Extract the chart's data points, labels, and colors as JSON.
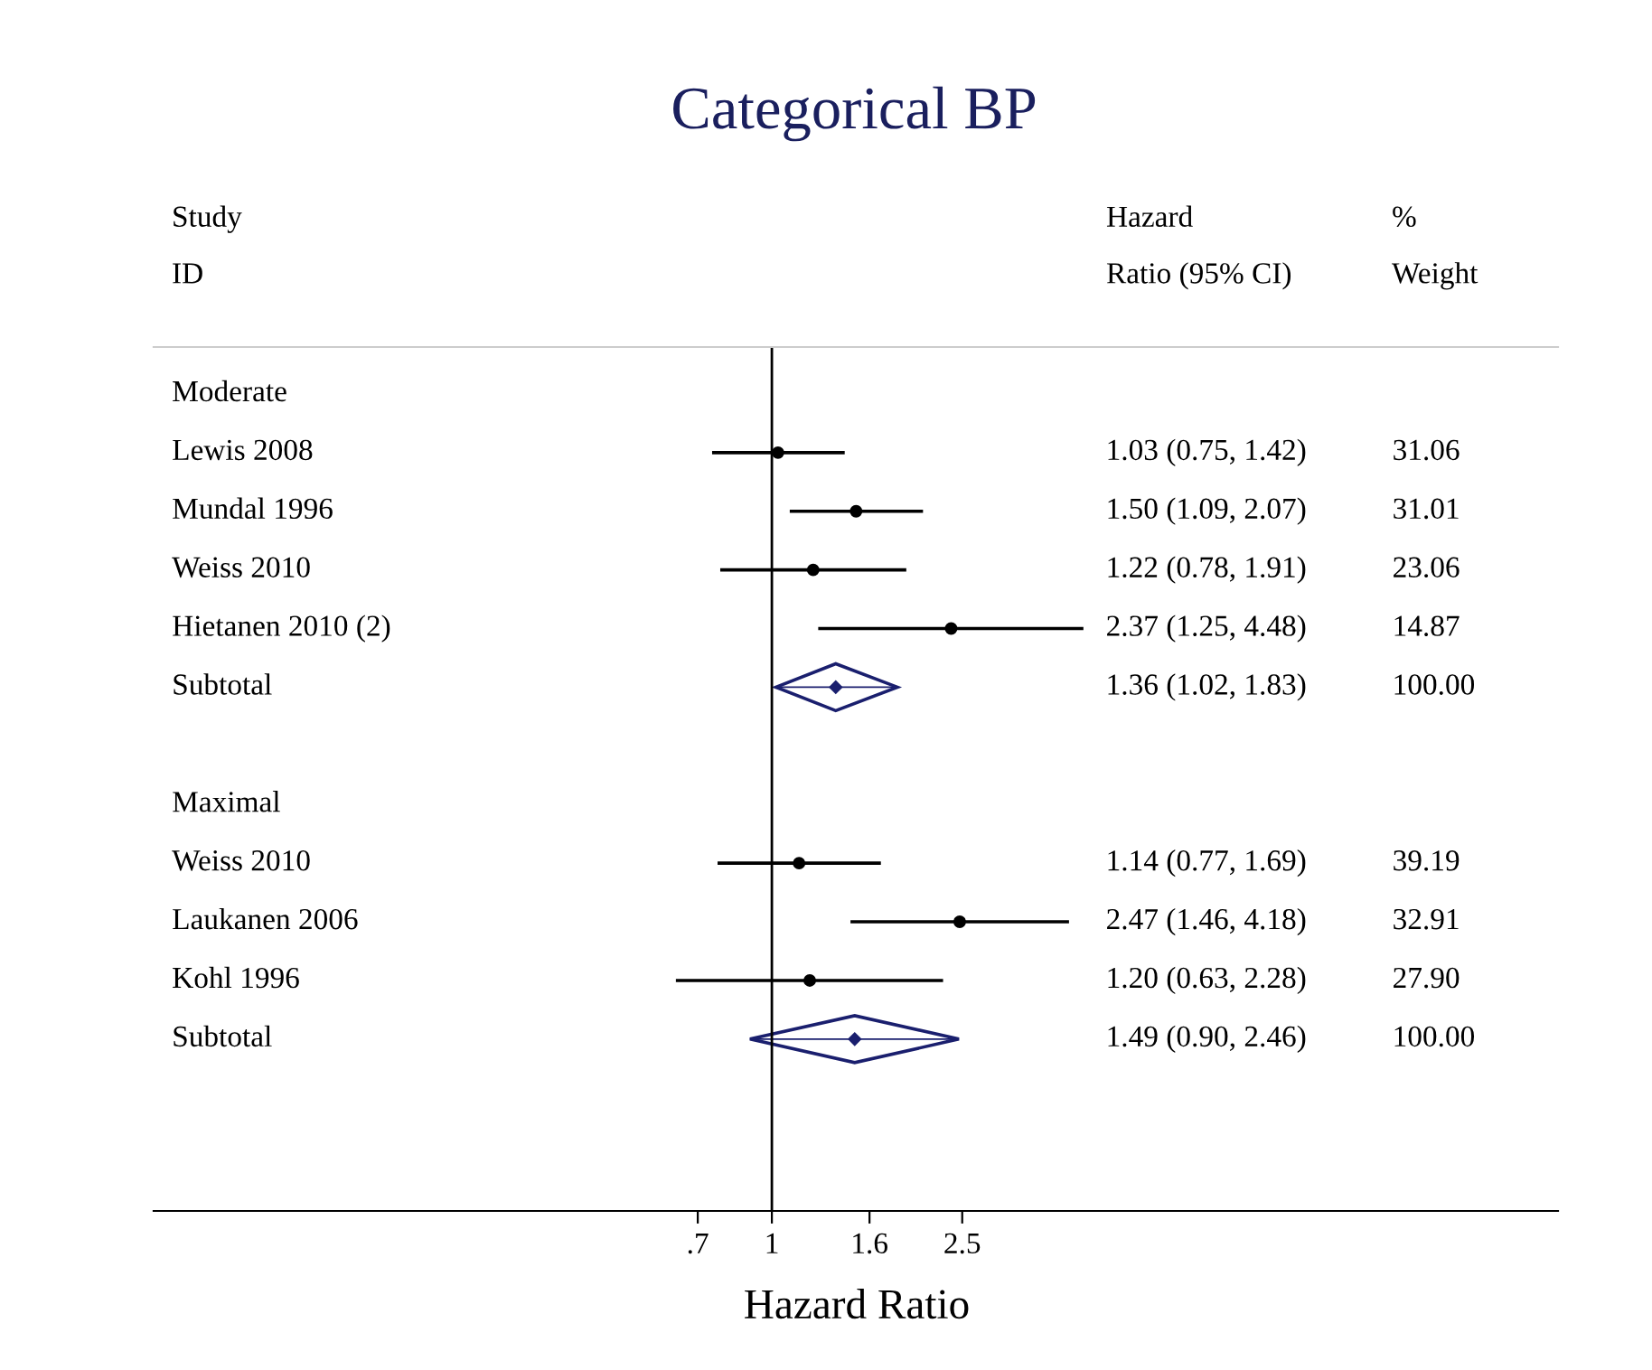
{
  "chart_data": {
    "type": "scatter",
    "orientation": "horizontal",
    "title": "Categorical BP",
    "ylabel": "Study\nID",
    "xlabel": "Hazard Ratio",
    "categories": [
      "Moderate",
      "Lewis 2008",
      "Mundal 1996",
      "Weiss 2010",
      "Hietanen 2010 (2)",
      "Subtotal",
      null,
      "Maximal",
      "Weiss 2010",
      "Laukanen 2006",
      "Kohl 1996",
      "Subtotal"
    ],
    "series": [
      {
        "color": "#000000",
        "marker": "circle",
        "values": [
          null,
          1.03,
          1.5,
          1.22,
          2.37,
          null,
          null,
          null,
          1.14,
          2.47,
          1.2,
          null
        ],
        "errors": [
          null,
          [
            0.75,
            1.42
          ],
          [
            1.09,
            2.07
          ],
          [
            0.78,
            1.91
          ],
          [
            1.25,
            4.48
          ],
          null,
          null,
          null,
          [
            0.77,
            1.69
          ],
          [
            1.46,
            4.18
          ],
          [
            0.63,
            2.28
          ],
          null
        ]
      },
      {
        "color": "#1a1f6e",
        "marker": "diamond",
        "values": [
          null,
          null,
          null,
          null,
          null,
          1.36,
          null,
          null,
          null,
          null,
          null,
          1.49
        ],
        "errors": [
          null,
          null,
          null,
          null,
          null,
          [
            1.02,
            1.83
          ],
          null,
          null,
          null,
          null,
          null,
          [
            0.9,
            2.46
          ]
        ]
      }
    ],
    "annotations": [
      "Hazard\nRatio (95% CI)",
      "%\nWeight",
      "1.03 (0.75, 1.42)",
      "1.50 (1.09, 2.07)",
      "1.22 (0.78, 1.91)",
      "2.37 (1.25, 4.48)",
      "1.36 (1.02, 1.83)",
      "1.14 (0.77, 1.69)",
      "2.47 (1.46, 4.18)",
      "1.20 (0.63, 2.28)",
      "1.49 (0.90, 2.46)",
      "31.06",
      "31.01",
      "23.06",
      "14.87",
      "100.00",
      "39.19",
      "32.91",
      "27.90",
      "100.00"
    ],
    "log": "x",
    "xlim": [
      0.051,
      44
    ],
    "xticks": [
      {
        "value": 0.7,
        "label": ".7"
      },
      1,
      1.6,
      2.5
    ],
    "ref_lines": [
      {
        "axis": "x",
        "value": 1,
        "color": "#000000"
      }
    ],
    "grid": false,
    "legend": false
  }
}
